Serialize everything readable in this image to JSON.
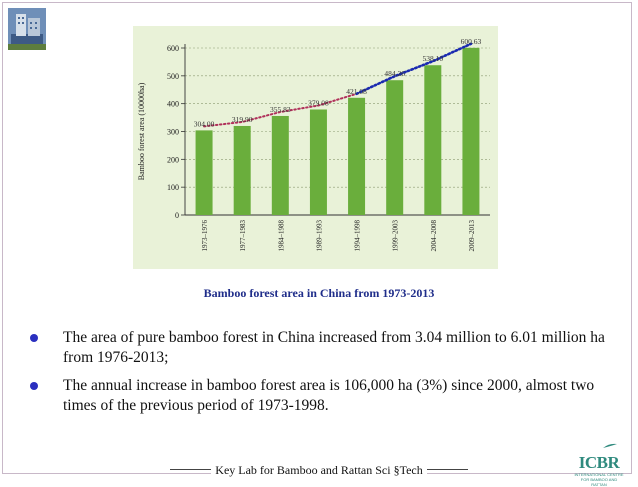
{
  "chart_data": {
    "type": "bar",
    "ylabel": "Bamboo forest area (10000ha)",
    "xlabel": "",
    "ylim": [
      0,
      600
    ],
    "yticks": [
      0,
      100,
      200,
      300,
      400,
      500,
      600
    ],
    "grid": true,
    "categories": [
      "1973–1976",
      "1977–1983",
      "1984–1988",
      "1989–1993",
      "1994–1998",
      "1999–2003",
      "2004–2008",
      "2009–2013"
    ],
    "values": [
      304.0,
      319.9,
      355.83,
      379.08,
      421.08,
      484.26,
      538.1,
      600.63
    ],
    "value_labels": [
      "304.00",
      "319.90",
      "355.83",
      "379.08",
      "421.08",
      "484.26",
      "538.10",
      "600.63"
    ],
    "colors": {
      "bar": "#6aae3c",
      "panel": "#e9f2d8",
      "trend_early": "#b0305a",
      "trend_late": "#1a2ab0"
    }
  },
  "caption": "Bamboo forest area  in China  from  1973-2013",
  "bullets": [
    {
      "text": " The area of pure bamboo forest  in China increased from 3.04 million to 6.01 million ha from 1976-2013;"
    },
    {
      "text": " The annual increase in bamboo forest area is 106,000 ha  (3%) since 2000,  almost two times of the previous period of 1973-1998."
    }
  ],
  "footer": {
    "text": "Key Lab for Bamboo and Rattan Sci §Tech"
  },
  "logo": {
    "mark": "ICBR",
    "subtitle": "INTERNATIONAL CENTRE FOR BAMBOO AND RATTAN",
    "icon": "icbr-logo-icon"
  },
  "corner_image": {
    "icon": "building-photo-icon"
  }
}
